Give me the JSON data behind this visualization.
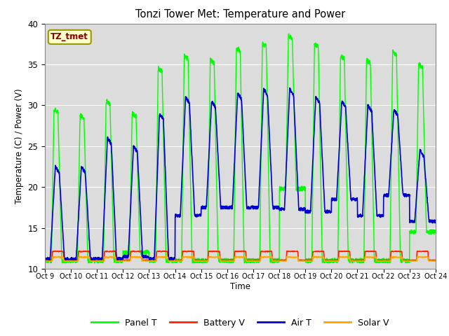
{
  "title": "Tonzi Tower Met: Temperature and Power",
  "ylabel": "Temperature (C) / Power (V)",
  "xlabel": "Time",
  "ylim": [
    10,
    40
  ],
  "annotation_text": "TZ_tmet",
  "annotation_color": "#8B0000",
  "annotation_bg": "#FFFFCC",
  "annotation_edge": "#999900",
  "bg_color": "#DCDCDC",
  "fig_color": "#FFFFFF",
  "line_colors": {
    "panel_t": "#00FF00",
    "battery_v": "#FF2200",
    "air_t": "#0000CC",
    "solar_v": "#FFA500"
  },
  "legend_labels": [
    "Panel T",
    "Battery V",
    "Air T",
    "Solar V"
  ],
  "xtick_labels": [
    "Oct 9",
    "Oct 10",
    "Oct 11",
    "Oct 12",
    "Oct 13",
    "Oct 14",
    "Oct 15",
    "Oct 16",
    "Oct 17",
    "Oct 18",
    "Oct 19",
    "Oct 20",
    "Oct 21",
    "Oct 22",
    "Oct 23",
    "Oct 24"
  ],
  "num_days": 15,
  "grid_color": "#FFFFFF",
  "yticks": [
    10,
    15,
    20,
    25,
    30,
    35,
    40
  ],
  "panel_peaks": [
    29.5,
    11,
    28.8,
    11,
    30.5,
    11,
    29,
    12,
    34.5,
    11,
    36,
    11,
    35.5,
    11,
    37,
    11,
    37.5,
    11,
    38.5,
    19.8,
    37.5,
    11,
    36,
    11,
    35.5,
    11,
    36.5,
    11,
    35,
    14.5
  ],
  "air_peaks": [
    22.5,
    11.2,
    22.5,
    11.2,
    26,
    11.2,
    25,
    11.5,
    29,
    11.2,
    31,
    16.5,
    30.5,
    17.5,
    31.5,
    17.5,
    32,
    17.5,
    32,
    17.3,
    31,
    17,
    30.5,
    18.5,
    30,
    16.5,
    29.5,
    19,
    24.5,
    15.8
  ]
}
